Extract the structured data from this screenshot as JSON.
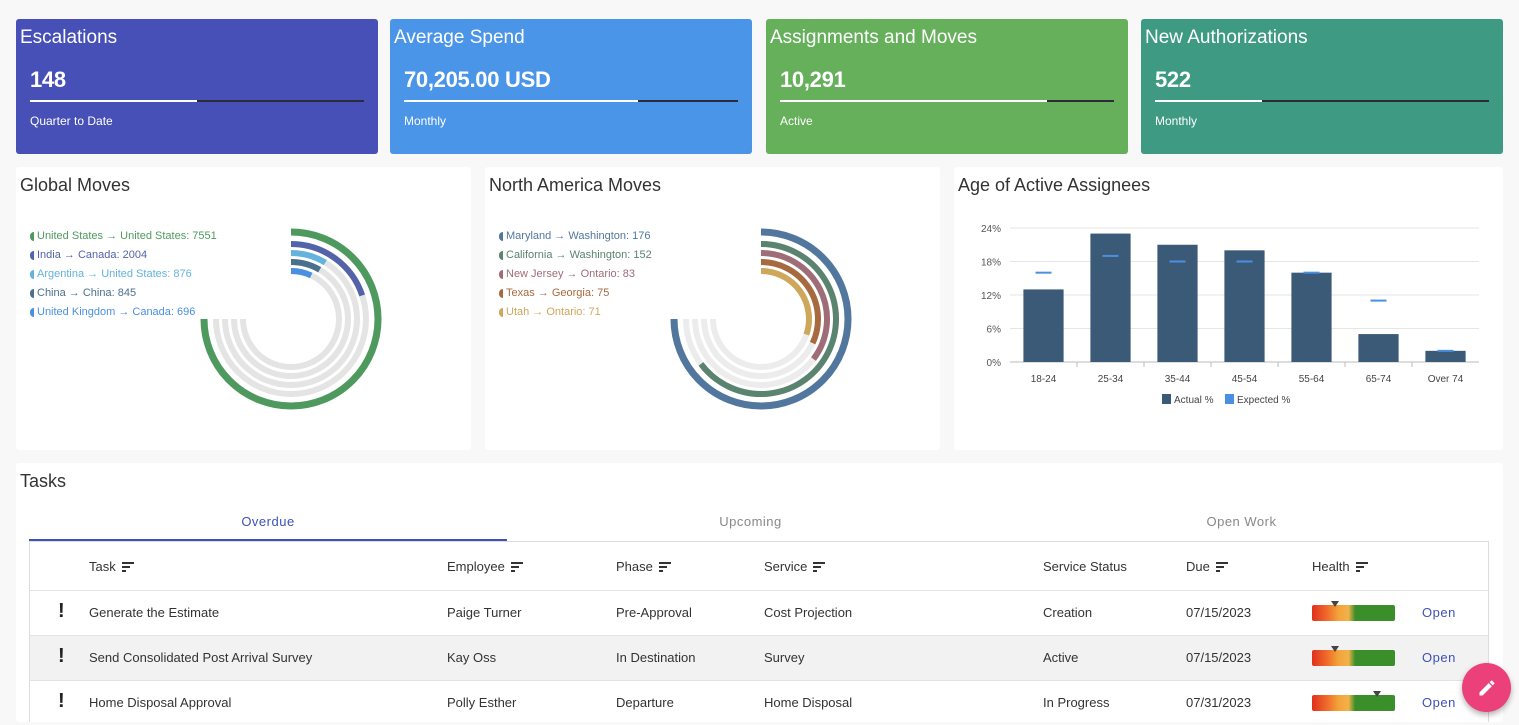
{
  "kpis": [
    {
      "title": "Escalations",
      "value": "148",
      "sub": "Quarter to Date",
      "progress": 0.5,
      "color": "#4650b6"
    },
    {
      "title": "Average Spend",
      "value": "70,205.00 USD",
      "sub": "Monthly",
      "progress": 0.7,
      "color": "#4a95e8"
    },
    {
      "title": "Assignments and Moves",
      "value": "10,291",
      "sub": "Active",
      "progress": 0.8,
      "color": "#66b05c"
    },
    {
      "title": "New Authorizations",
      "value": "522",
      "sub": "Monthly",
      "progress": 0.32,
      "color": "#3f9a84"
    }
  ],
  "global_moves": {
    "title": "Global Moves",
    "legend": [
      {
        "label": "United States → United States: 7551",
        "value": 7551,
        "color": "#4e9a5e"
      },
      {
        "label": "India → Canada: 2004",
        "value": 2004,
        "color": "#5263a9"
      },
      {
        "label": "Argentina → United States: 876",
        "value": 876,
        "color": "#63b3dc"
      },
      {
        "label": "China → China: 845",
        "value": 845,
        "color": "#49718c"
      },
      {
        "label": "United Kingdom → Canada: 696",
        "value": 696,
        "color": "#4a90e2"
      }
    ]
  },
  "na_moves": {
    "title": "North America Moves",
    "legend": [
      {
        "label": "Maryland → Washington: 176",
        "value": 176,
        "color": "#52779f"
      },
      {
        "label": "California → Washington: 152",
        "value": 152,
        "color": "#5a8370"
      },
      {
        "label": "New Jersey → Ontario: 83",
        "value": 83,
        "color": "#9f6d78"
      },
      {
        "label": "Texas → Georgia: 75",
        "value": 75,
        "color": "#a66a3e"
      },
      {
        "label": "Utah → Ontario: 71",
        "value": 71,
        "color": "#cfa75b"
      }
    ]
  },
  "age_chart": {
    "title": "Age of Active Assignees",
    "chart_data": {
      "type": "bar",
      "categories": [
        "18-24",
        "25-34",
        "35-44",
        "45-54",
        "55-64",
        "65-74",
        "Over 74"
      ],
      "series": [
        {
          "name": "Actual %",
          "values": [
            13,
            23,
            21,
            20,
            16,
            5,
            2
          ],
          "color": "#3b5a78"
        },
        {
          "name": "Expected %",
          "values": [
            16,
            19,
            18,
            18,
            16,
            11,
            2
          ],
          "color": "#4a90e2"
        }
      ],
      "yticks": [
        "24%",
        "18%",
        "12%",
        "6%",
        "0%"
      ],
      "ylim": [
        0,
        24
      ],
      "legend_position": "bottom"
    }
  },
  "tasks": {
    "title": "Tasks",
    "tabs": [
      "Overdue",
      "Upcoming",
      "Open Work"
    ],
    "columns": [
      "Task",
      "Employee",
      "Phase",
      "Service",
      "Service Status",
      "Due",
      "Health"
    ],
    "rows": [
      {
        "flag": "!",
        "task": "Generate the Estimate",
        "employee": "Paige Turner",
        "phase": "Pre-Approval",
        "service": "Cost Projection",
        "status": "Creation",
        "due": "07/15/2023",
        "health": 0.28,
        "action": "Open"
      },
      {
        "flag": "!",
        "task": "Send Consolidated Post Arrival Survey",
        "employee": "Kay Oss",
        "phase": "In Destination",
        "service": "Survey",
        "status": "Active",
        "due": "07/15/2023",
        "health": 0.28,
        "action": "Open"
      },
      {
        "flag": "!",
        "task": "Home Disposal Approval",
        "employee": "Polly Esther",
        "phase": "Departure",
        "service": "Home Disposal",
        "status": "In Progress",
        "due": "07/31/2023",
        "health": 0.78,
        "action": "Open"
      }
    ]
  }
}
